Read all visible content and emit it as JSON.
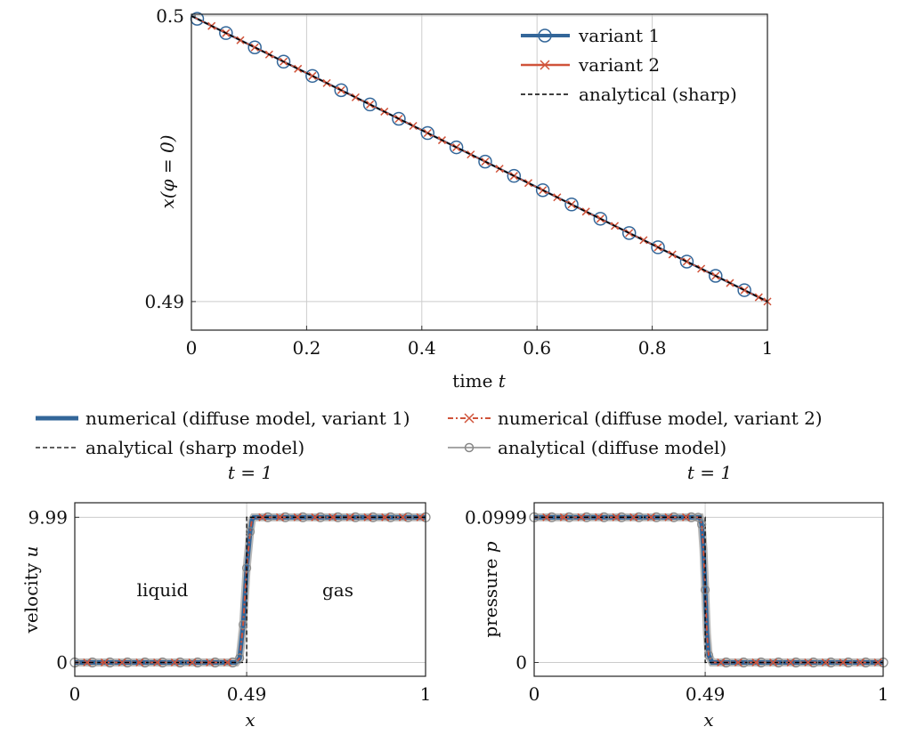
{
  "colors": {
    "variant1": "#336699",
    "variant2": "#d0533a",
    "sharp": "#000000",
    "diffuse": "#888888",
    "grid": "#cccccc"
  },
  "chart_data": [
    {
      "type": "line",
      "xlabel": "time t",
      "ylabel": "x(φ = 0)",
      "xlim": [
        0,
        1
      ],
      "ylim": [
        0.489,
        0.50006
      ],
      "xticks": [
        "0",
        "0.2",
        "0.4",
        "0.6",
        "0.8",
        "1"
      ],
      "xtick_values": [
        0,
        0.2,
        0.4,
        0.6,
        0.8,
        1
      ],
      "yticks": [
        "0.49",
        "0.5"
      ],
      "ytick_values": [
        0.49,
        0.5
      ],
      "grid": true,
      "legend_placement": "top-right",
      "series": [
        {
          "name": "variant 1",
          "x": [
            0,
            1
          ],
          "y": [
            0.5,
            0.49
          ],
          "marker": "circle",
          "marker_x": [
            0.01,
            0.06,
            0.11,
            0.16,
            0.21,
            0.26,
            0.31,
            0.36,
            0.41,
            0.46,
            0.51,
            0.56,
            0.61,
            0.66,
            0.71,
            0.76,
            0.81,
            0.86,
            0.91,
            0.96
          ]
        },
        {
          "name": "variant 2",
          "x": [
            0,
            1
          ],
          "y": [
            0.5,
            0.49
          ],
          "marker": "x",
          "marker_x": [
            0.035,
            0.06,
            0.085,
            0.11,
            0.135,
            0.16,
            0.185,
            0.21,
            0.235,
            0.26,
            0.285,
            0.31,
            0.335,
            0.36,
            0.385,
            0.41,
            0.435,
            0.46,
            0.485,
            0.51,
            0.535,
            0.56,
            0.585,
            0.61,
            0.635,
            0.66,
            0.685,
            0.71,
            0.735,
            0.76,
            0.785,
            0.81,
            0.835,
            0.86,
            0.885,
            0.91,
            0.935,
            0.96,
            0.985,
            1.0
          ]
        },
        {
          "name": "analytical (sharp)",
          "x": [
            0,
            1
          ],
          "y": [
            0.5,
            0.49
          ],
          "style": "dashed"
        }
      ]
    },
    {
      "type": "line",
      "title": "t = 1",
      "xlabel": "x",
      "ylabel": "velocity u",
      "xlim": [
        0,
        1
      ],
      "ylim": [
        -0.95,
        10.99
      ],
      "xticks": [
        "0",
        "0.49",
        "1"
      ],
      "xtick_values": [
        0,
        0.49,
        1
      ],
      "yticks": [
        "0",
        "9.99"
      ],
      "ytick_values": [
        0,
        9.99
      ],
      "grid": true,
      "annotations": [
        {
          "text": "liquid",
          "x": 0.25,
          "y": 5
        },
        {
          "text": "gas",
          "x": 0.75,
          "y": 5
        }
      ],
      "series": [
        {
          "name": "numerical (diffuse model, variant 1)",
          "x": [
            0,
            0.46,
            0.47,
            0.48,
            0.49,
            0.5,
            0.505,
            0.51,
            1
          ],
          "y": [
            0,
            0,
            0.3,
            2.6,
            6.5,
            9.0,
            9.8,
            9.99,
            9.99
          ]
        },
        {
          "name": "numerical (diffuse model, variant 2)",
          "x": [
            0,
            0.46,
            0.47,
            0.48,
            0.49,
            0.5,
            0.505,
            0.51,
            1
          ],
          "y": [
            0,
            0,
            0.3,
            2.6,
            6.5,
            9.0,
            9.8,
            9.99,
            9.99
          ]
        },
        {
          "name": "analytical (sharp model)",
          "x": [
            0,
            0.49,
            0.49,
            1
          ],
          "y": [
            0,
            0,
            9.99,
            9.99
          ]
        },
        {
          "name": "analytical (diffuse model)",
          "x": [
            0,
            0.46,
            0.47,
            0.48,
            0.49,
            0.5,
            0.505,
            0.51,
            1
          ],
          "y": [
            0,
            0,
            0.3,
            2.6,
            6.5,
            9.0,
            9.8,
            9.99,
            9.99
          ]
        }
      ]
    },
    {
      "type": "line",
      "title": "t = 1",
      "xlabel": "x",
      "ylabel": "pressure p",
      "xlim": [
        0,
        1
      ],
      "ylim": [
        -0.0095,
        0.1099
      ],
      "xticks": [
        "0",
        "0.49",
        "1"
      ],
      "xtick_values": [
        0,
        0.49,
        1
      ],
      "yticks": [
        "0",
        "0.0999"
      ],
      "ytick_values": [
        0,
        0.0999
      ],
      "grid": true,
      "series": [
        {
          "name": "numerical (diffuse model, variant 1)",
          "x": [
            0,
            0.475,
            0.48,
            0.485,
            0.49,
            0.495,
            0.5,
            0.51,
            1
          ],
          "y": [
            0.0999,
            0.0999,
            0.095,
            0.078,
            0.05,
            0.02,
            0.005,
            0,
            0
          ]
        },
        {
          "name": "numerical (diffuse model, variant 2)",
          "x": [
            0,
            0.475,
            0.48,
            0.485,
            0.49,
            0.495,
            0.5,
            0.51,
            1
          ],
          "y": [
            0.0999,
            0.0999,
            0.095,
            0.078,
            0.05,
            0.02,
            0.005,
            0,
            0
          ]
        },
        {
          "name": "analytical (sharp model)",
          "x": [
            0,
            0.49,
            0.49,
            1
          ],
          "y": [
            0.0999,
            0.0999,
            0,
            0
          ]
        },
        {
          "name": "analytical (diffuse model)",
          "x": [
            0,
            0.475,
            0.48,
            0.485,
            0.49,
            0.495,
            0.5,
            0.51,
            1
          ],
          "y": [
            0.0999,
            0.0999,
            0.095,
            0.078,
            0.05,
            0.02,
            0.005,
            0,
            0
          ]
        }
      ]
    }
  ],
  "top_legend": [
    "variant 1",
    "variant 2",
    "analytical (sharp)"
  ],
  "shared_legend": [
    "numerical (diffuse model, variant 1)",
    "numerical (diffuse model, variant 2)",
    "analytical (sharp model)",
    "analytical (diffuse model)"
  ]
}
